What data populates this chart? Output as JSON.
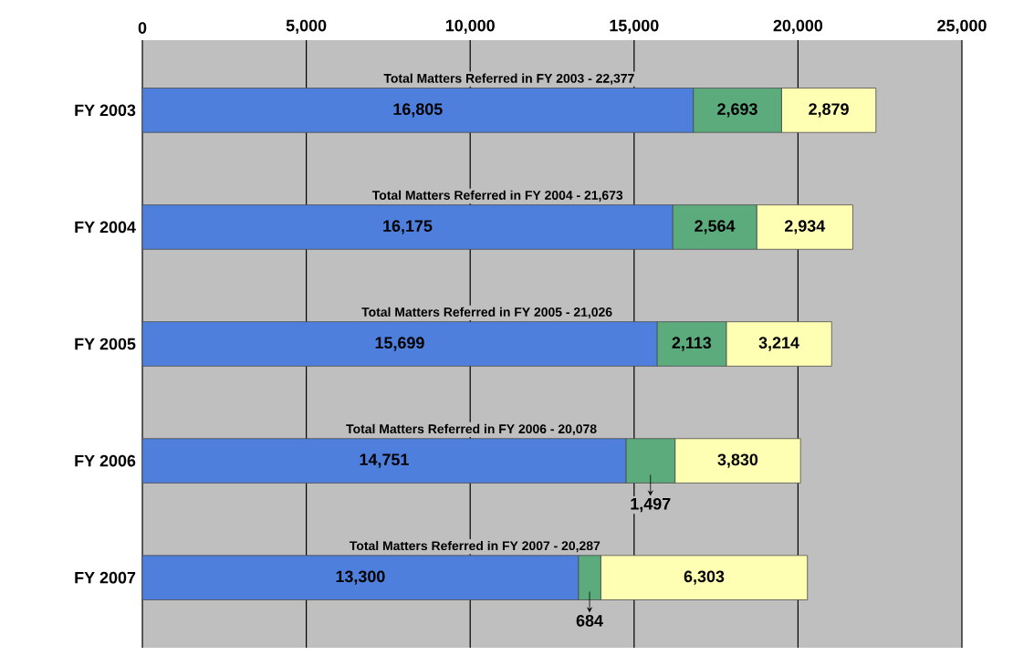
{
  "chart_data": {
    "type": "bar",
    "orientation": "horizontal",
    "stacked": true,
    "categories": [
      "FY 2003",
      "FY 2004",
      "FY 2005",
      "FY 2006",
      "FY 2007"
    ],
    "series": [
      {
        "color": "#4f7fdc",
        "values": [
          16805,
          16175,
          15699,
          14751,
          13300
        ],
        "value_labels": [
          "16,805",
          "16,175",
          "15,699",
          "14,751",
          "13,300"
        ]
      },
      {
        "color": "#5cab7d",
        "values": [
          2693,
          2564,
          2113,
          1497,
          684
        ],
        "value_labels": [
          "2,693",
          "2,564",
          "2,113",
          "1,497",
          "684"
        ]
      },
      {
        "color": "#ffffb3",
        "values": [
          2879,
          2934,
          3214,
          3830,
          6303
        ],
        "value_labels": [
          "2,879",
          "2,934",
          "3,214",
          "3,830",
          "6,303"
        ]
      }
    ],
    "totals": [
      "Total Matters Referred in FY 2003 - 22,377",
      "Total Matters Referred in FY 2004 - 21,673",
      "Total Matters Referred in FY 2005 - 21,026",
      "Total Matters Referred in FY 2006 - 20,078",
      "Total Matters Referred in FY 2007 - 20,287"
    ],
    "xlim": [
      0,
      25000
    ],
    "xticks": [
      {
        "value": 0,
        "label": "0"
      },
      {
        "value": 5000,
        "label": "5,000"
      },
      {
        "value": 10000,
        "label": "10,000"
      },
      {
        "value": 15000,
        "label": "15,000"
      },
      {
        "value": 20000,
        "label": "20,000"
      },
      {
        "value": 25000,
        "label": "25,000"
      }
    ],
    "grid": "x"
  }
}
